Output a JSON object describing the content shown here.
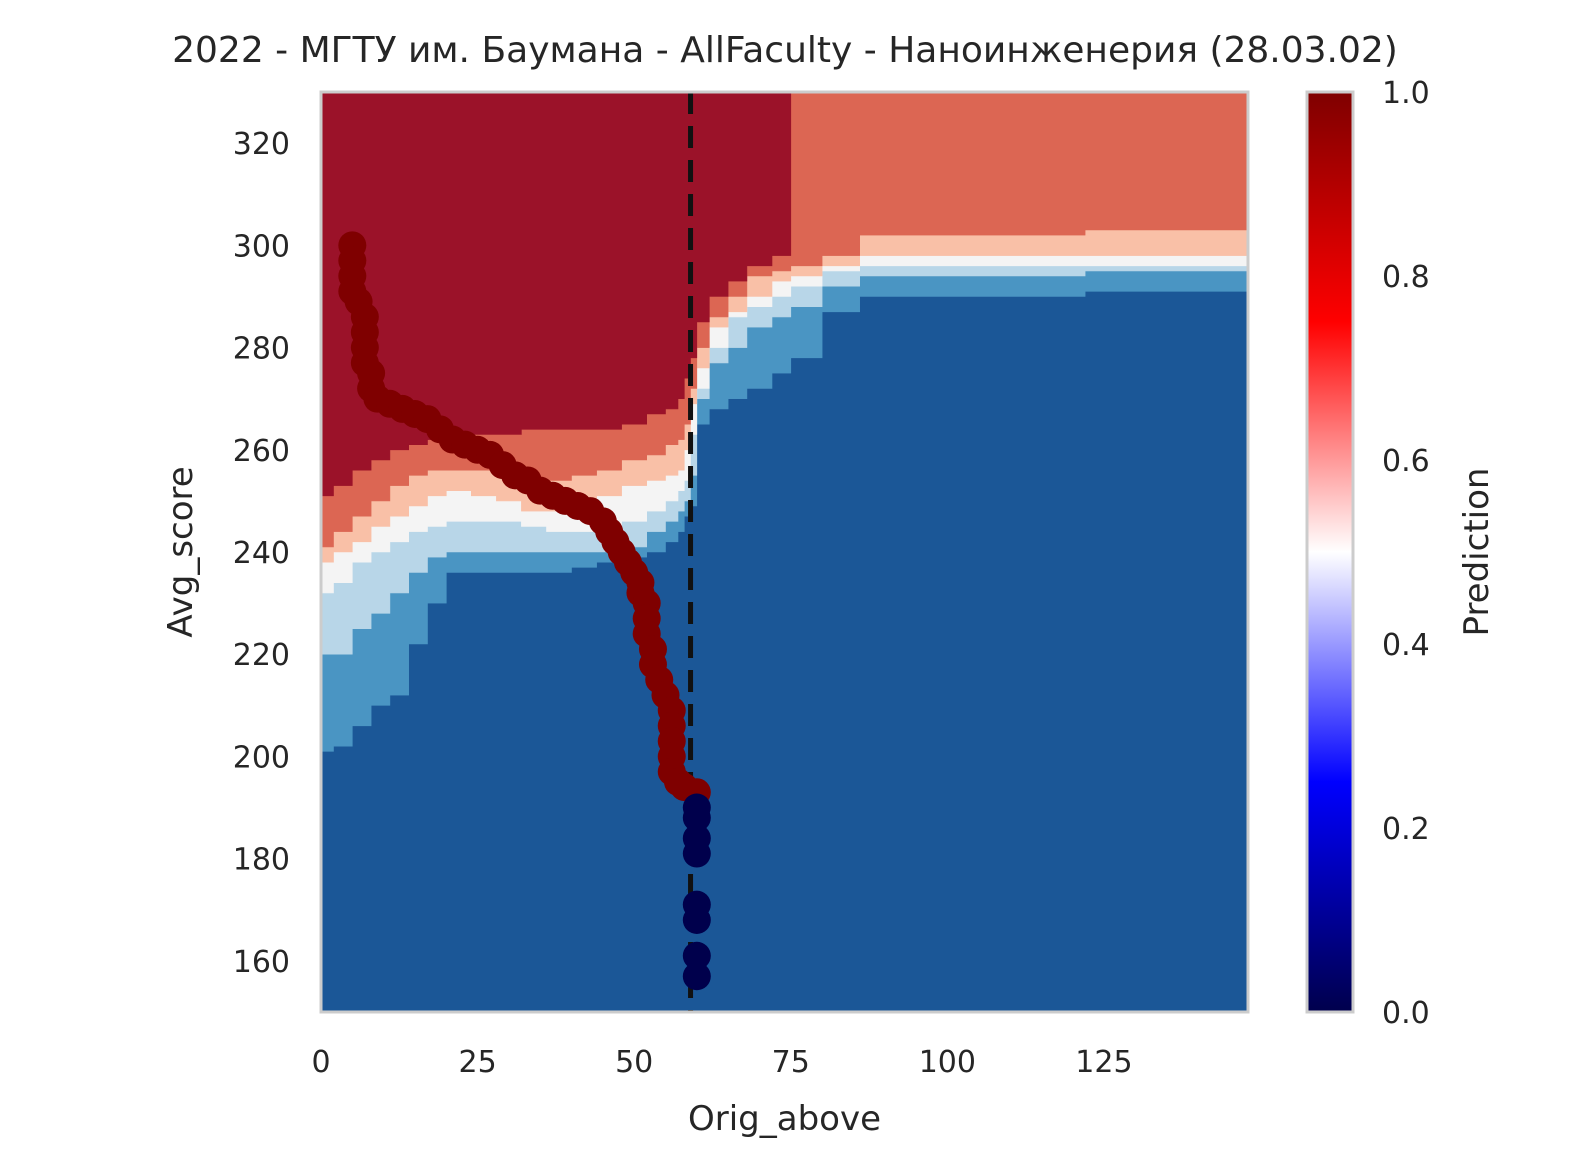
{
  "chart_data": {
    "type": "contour_scatter",
    "title": "2022 - МГТУ им. Баумана - AllFaculty - Наноинженерия (28.03.02)",
    "xlabel": "Orig_above",
    "ylabel": "Avg_score",
    "xlim": [
      0,
      148
    ],
    "ylim": [
      150,
      330
    ],
    "xticks": [
      0,
      25,
      50,
      75,
      100,
      125
    ],
    "yticks": [
      160,
      180,
      200,
      220,
      240,
      260,
      280,
      300,
      320
    ],
    "grid": false,
    "vline": {
      "x": 59,
      "style": "dashed",
      "color": "#111111"
    },
    "colorbar": {
      "label": "Prediction",
      "range": [
        0.0,
        1.0
      ],
      "ticks": [
        0.0,
        0.2,
        0.4,
        0.6,
        0.8,
        1.0
      ],
      "tick_labels": [
        "0.0",
        "0.2",
        "0.4",
        "0.6",
        "0.8",
        "1.0"
      ],
      "colors": [
        "#00004c",
        "#0000ff",
        "#ffffff",
        "#ff0000",
        "#7f0000"
      ]
    },
    "contour_levels": {
      "colors": [
        "#1b5797",
        "#4a95c3",
        "#b8d6e8",
        "#f4f4f4",
        "#f9c0a7",
        "#dc6653",
        "#9b1229"
      ],
      "boundaries": {
        "x": [
          0,
          2,
          5,
          8,
          11,
          14,
          17,
          20,
          24,
          28,
          32,
          36,
          40,
          44,
          48,
          52,
          55,
          57,
          58,
          59,
          60,
          62,
          65,
          68,
          72,
          75,
          80,
          86,
          90,
          100,
          110,
          122,
          125,
          130,
          148
        ],
        "b0": [
          201,
          202,
          206,
          210,
          212,
          222,
          230,
          236,
          236,
          236,
          236,
          236,
          237,
          238,
          239,
          240,
          242,
          244,
          247,
          249,
          265,
          268,
          270,
          272,
          275,
          278,
          287,
          290,
          290,
          290,
          290,
          291,
          291,
          291,
          291
        ],
        "b1": [
          220,
          220,
          225,
          228,
          232,
          236,
          239,
          240,
          240,
          240,
          240,
          240,
          240,
          240,
          241,
          244,
          246,
          248,
          250,
          255,
          270,
          277,
          280,
          284,
          286,
          288,
          292,
          294,
          294,
          294,
          294,
          295,
          295,
          295,
          295
        ],
        "b2": [
          232,
          234,
          238,
          240,
          242,
          244,
          245,
          246,
          246,
          246,
          245,
          244,
          244,
          244,
          246,
          248,
          250,
          252,
          254,
          263,
          272,
          280,
          286,
          288,
          290,
          292,
          295,
          296,
          296,
          296,
          296,
          296,
          296,
          296,
          296
        ],
        "b3": [
          238,
          240,
          242,
          245,
          247,
          249,
          251,
          252,
          251,
          250,
          248,
          248,
          249,
          251,
          253,
          254,
          255,
          256,
          260,
          269,
          276,
          284,
          287,
          290,
          293,
          294,
          296,
          298,
          298,
          298,
          298,
          298,
          298,
          298,
          298
        ],
        "b4": [
          241,
          244,
          247,
          250,
          253,
          255,
          256,
          256,
          256,
          255,
          254,
          254,
          255,
          256,
          258,
          259,
          261,
          262,
          265,
          272,
          280,
          286,
          290,
          294,
          295,
          296,
          298,
          302,
          302,
          302,
          302,
          303,
          303,
          303,
          303
        ],
        "b5": [
          251,
          253,
          256,
          258,
          260,
          261,
          262,
          262,
          263,
          263,
          264,
          264,
          264,
          264,
          265,
          267,
          268,
          270,
          274,
          278,
          285,
          290,
          293,
          296,
          298,
          330,
          330,
          330,
          330,
          330,
          330,
          330,
          330,
          330,
          330
        ]
      }
    },
    "scatter": {
      "admitted_color": "#7f0000",
      "rejected_color": "#00004c",
      "admitted": [
        [
          5,
          300
        ],
        [
          5,
          297
        ],
        [
          5,
          294
        ],
        [
          5,
          291
        ],
        [
          6,
          289
        ],
        [
          7,
          286
        ],
        [
          7,
          283
        ],
        [
          7,
          280
        ],
        [
          7,
          277
        ],
        [
          8,
          275
        ],
        [
          8,
          272
        ],
        [
          9,
          270
        ],
        [
          11,
          269
        ],
        [
          13,
          268
        ],
        [
          15,
          267
        ],
        [
          17,
          266
        ],
        [
          19,
          264
        ],
        [
          21,
          262
        ],
        [
          23,
          261
        ],
        [
          25,
          260
        ],
        [
          27,
          259
        ],
        [
          29,
          257
        ],
        [
          31,
          255
        ],
        [
          33,
          254
        ],
        [
          35,
          252
        ],
        [
          37,
          251
        ],
        [
          39,
          250
        ],
        [
          41,
          249
        ],
        [
          43,
          248
        ],
        [
          45,
          246
        ],
        [
          46,
          244
        ],
        [
          47,
          242
        ],
        [
          48,
          240
        ],
        [
          49,
          238
        ],
        [
          50,
          236
        ],
        [
          51,
          234
        ],
        [
          51,
          232
        ],
        [
          52,
          230
        ],
        [
          52,
          227
        ],
        [
          52,
          224
        ],
        [
          53,
          221
        ],
        [
          53,
          218
        ],
        [
          54,
          215
        ],
        [
          55,
          212
        ],
        [
          56,
          209
        ],
        [
          56,
          206
        ],
        [
          56,
          203
        ],
        [
          56,
          200
        ],
        [
          56,
          197
        ],
        [
          57,
          195
        ],
        [
          58,
          194
        ],
        [
          60,
          193
        ]
      ],
      "rejected": [
        [
          60,
          190
        ],
        [
          60,
          188
        ],
        [
          60,
          184
        ],
        [
          60,
          181
        ],
        [
          60,
          171
        ],
        [
          60,
          168
        ],
        [
          60,
          161
        ],
        [
          60,
          157
        ]
      ]
    }
  }
}
